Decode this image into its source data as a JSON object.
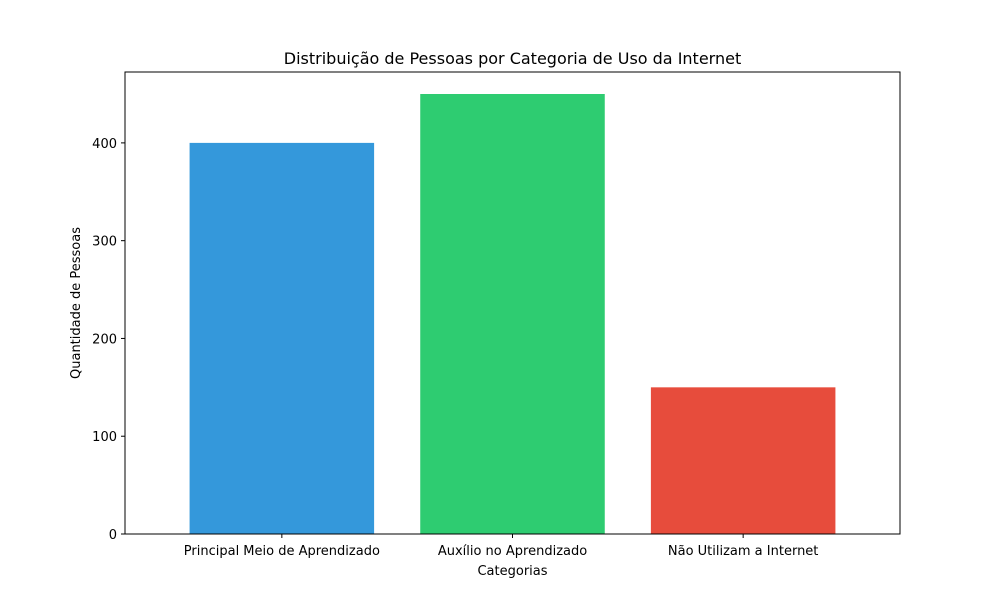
{
  "chart_data": {
    "type": "bar",
    "title": "Distribuição de Pessoas por Categoria de Uso da Internet",
    "xlabel": "Categorias",
    "ylabel": "Quantidade de Pessoas",
    "categories": [
      "Principal Meio de Aprendizado",
      "Auxílio no Aprendizado",
      "Não Utilizam a Internet"
    ],
    "values": [
      400,
      450,
      150
    ],
    "colors": [
      "#3498db",
      "#2ecc71",
      "#e74c3c"
    ],
    "ylim": [
      0,
      472.5
    ],
    "yticks": [
      0,
      100,
      200,
      300,
      400
    ],
    "grid": false,
    "legend": "none"
  }
}
